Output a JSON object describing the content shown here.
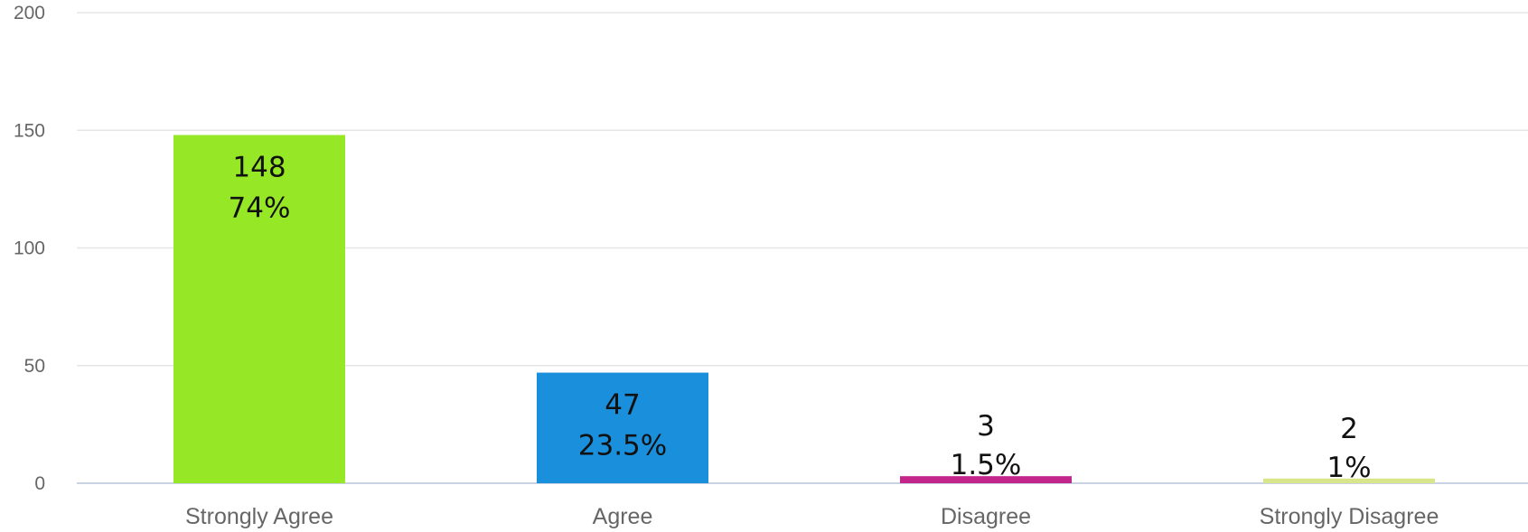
{
  "chart_data": {
    "type": "bar",
    "categories": [
      "Strongly Agree",
      "Agree",
      "Disagree",
      "Strongly Disagree"
    ],
    "values": [
      148,
      47,
      3,
      2
    ],
    "percent_labels": [
      "74%",
      "23.5%",
      "1.5%",
      "1%"
    ],
    "count_labels": [
      "148",
      "47",
      "3",
      "2"
    ],
    "colors": [
      "#96e826",
      "#1a8fdc",
      "#c2268a",
      "#d8e58a"
    ],
    "yticks": [
      "0",
      "50",
      "100",
      "150",
      "200"
    ],
    "ylim": [
      0,
      200
    ],
    "grid": true,
    "title": "",
    "xlabel": "",
    "ylabel": ""
  }
}
